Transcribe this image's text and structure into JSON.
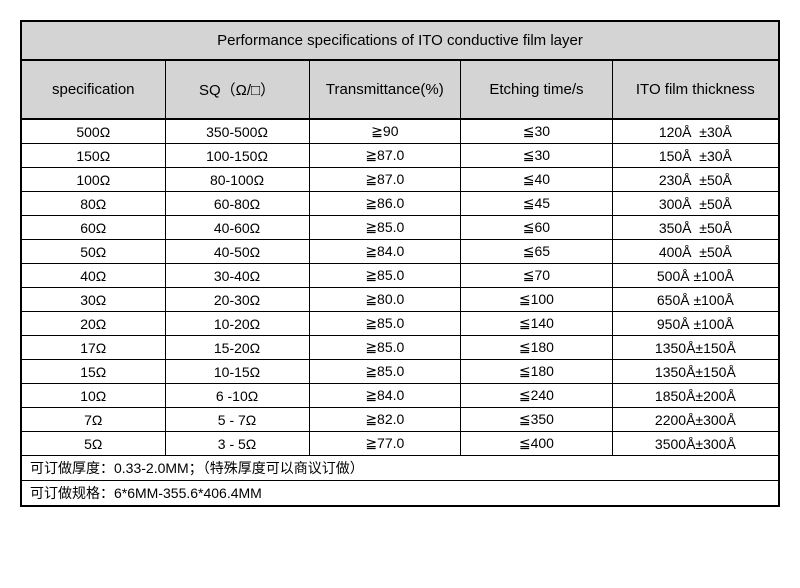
{
  "title": "Performance specifications of ITO conductive film layer",
  "columns": [
    "specification",
    "SQ（Ω/□）",
    "Transmittance(%)",
    "Etching time/s",
    "ITO film thickness"
  ],
  "rows": [
    [
      "500Ω",
      "350-500Ω",
      "≧90",
      "≦30",
      "120Å  ±30Å"
    ],
    [
      "150Ω",
      "100-150Ω",
      "≧87.0",
      "≦30",
      "150Å  ±30Å"
    ],
    [
      "100Ω",
      "80-100Ω",
      "≧87.0",
      "≦40",
      "230Å  ±50Å"
    ],
    [
      "80Ω",
      "60-80Ω",
      "≧86.0",
      "≦45",
      "300Å  ±50Å"
    ],
    [
      "60Ω",
      "40-60Ω",
      "≧85.0",
      "≦60",
      "350Å  ±50Å"
    ],
    [
      "50Ω",
      "40-50Ω",
      "≧84.0",
      "≦65",
      "400Å  ±50Å"
    ],
    [
      "40Ω",
      "30-40Ω",
      "≧85.0",
      "≦70",
      "500Å ±100Å"
    ],
    [
      "30Ω",
      "20-30Ω",
      "≧80.0",
      "≦100",
      "650Å ±100Å"
    ],
    [
      "20Ω",
      "10-20Ω",
      "≧85.0",
      "≦140",
      "950Å ±100Å"
    ],
    [
      "17Ω",
      "15-20Ω",
      "≧85.0",
      "≦180",
      "1350Å±150Å"
    ],
    [
      "15Ω",
      "10-15Ω",
      "≧85.0",
      "≦180",
      "1350Å±150Å"
    ],
    [
      "10Ω",
      "6 -10Ω",
      "≧84.0",
      "≦240",
      "1850Å±200Å"
    ],
    [
      "7Ω",
      "5 - 7Ω",
      "≧82.0",
      "≦350",
      "2200Å±300Å"
    ],
    [
      "5Ω",
      "3 - 5Ω",
      "≧77.0",
      "≦400",
      "3500Å±300Å"
    ]
  ],
  "footer1": "可订做厚度：0.33-2.0MM；（特殊厚度可以商议订做）",
  "footer2": "可订做规格：6*6MM-355.6*406.4MM"
}
